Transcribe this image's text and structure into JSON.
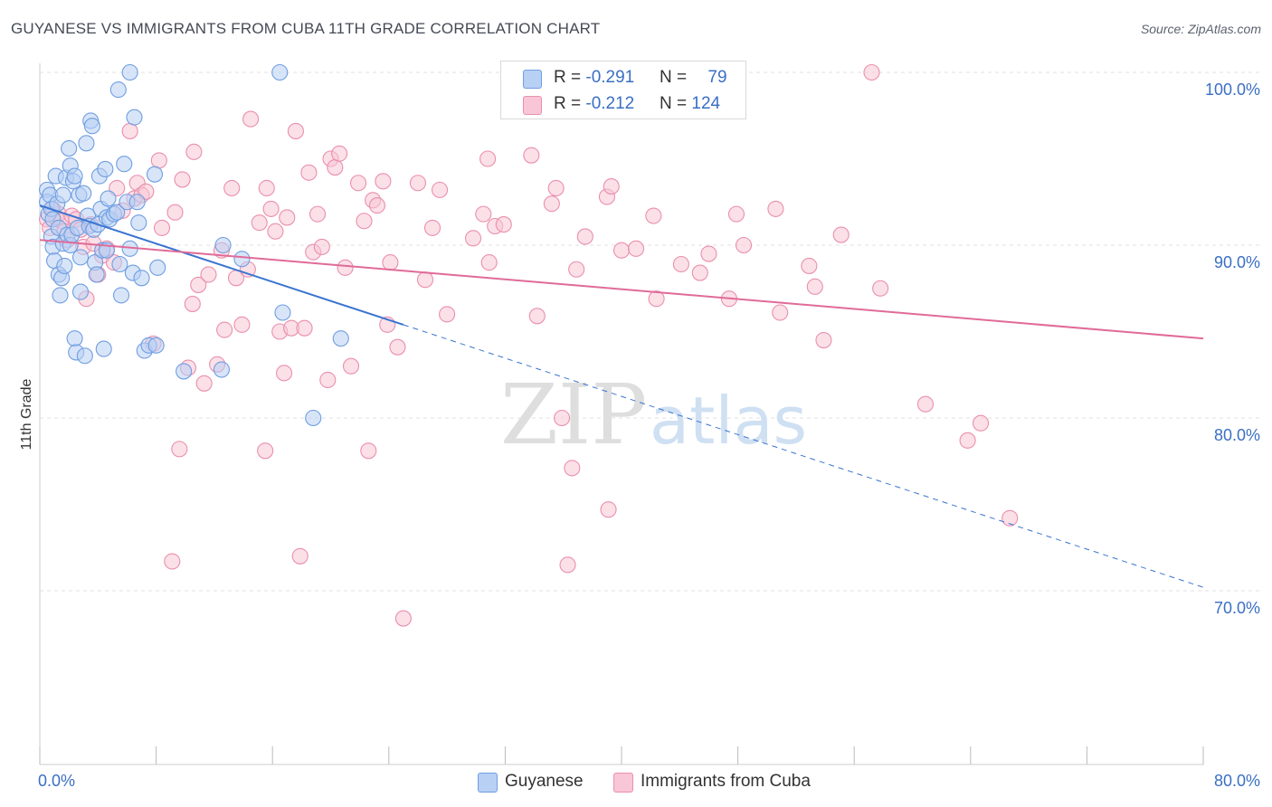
{
  "header": {
    "title": "GUYANESE VS IMMIGRANTS FROM CUBA 11TH GRADE CORRELATION CHART",
    "source": "Source: ZipAtlas.com"
  },
  "legend": {
    "r_label": "R = ",
    "n_label": "N = ",
    "rows": [
      {
        "r": "-0.291",
        "n": "79"
      },
      {
        "r": "-0.212",
        "n": "124"
      }
    ]
  },
  "bottom_legend": [
    "Guyanese",
    "Immigrants from Cuba"
  ],
  "watermark": {
    "zip": "ZIP",
    "atlas": "atlas"
  },
  "colors": {
    "blue_fill": "#b8d0f4",
    "blue_stroke": "#6f9ee0",
    "blue_line": "#3a74d0",
    "pink_fill": "#f8c6d6",
    "pink_stroke": "#ea8fad",
    "pink_line": "#e06b98",
    "tick_text": "#3a6fc4",
    "grid": "#e2e2e2"
  },
  "chart_data": {
    "type": "scatter",
    "title": "GUYANESE VS IMMIGRANTS FROM CUBA 11TH GRADE CORRELATION CHART",
    "xlabel": "",
    "ylabel": "11th Grade",
    "xlim": [
      0,
      80
    ],
    "ylim": [
      60,
      100.5
    ],
    "x_ticks": [
      "0.0%",
      "80.0%"
    ],
    "y_ticks": [
      {
        "value": 100,
        "label": "100.0%"
      },
      {
        "value": 90,
        "label": "90.0%"
      },
      {
        "value": 80,
        "label": "80.0%"
      },
      {
        "value": 70,
        "label": "70.0%"
      }
    ],
    "grid": true,
    "legend_position": "top-center",
    "series": [
      {
        "name": "Guyanese",
        "r": -0.291,
        "n": 79,
        "trend": {
          "x0": 0,
          "y0": 92.3,
          "x1": 80,
          "y1": 70.2,
          "solid_until_x": 25
        },
        "points": [
          [
            0.5,
            93.2
          ],
          [
            0.5,
            92.5
          ],
          [
            0.6,
            91.8
          ],
          [
            0.7,
            92.9
          ],
          [
            0.8,
            92.1
          ],
          [
            0.9,
            91.5
          ],
          [
            0.8,
            90.5
          ],
          [
            0.9,
            89.9
          ],
          [
            1.0,
            89.1
          ],
          [
            1.1,
            94.0
          ],
          [
            1.2,
            92.4
          ],
          [
            1.3,
            91.0
          ],
          [
            1.3,
            88.3
          ],
          [
            1.4,
            87.1
          ],
          [
            1.5,
            88.1
          ],
          [
            1.6,
            90.1
          ],
          [
            1.6,
            92.9
          ],
          [
            1.7,
            88.8
          ],
          [
            1.8,
            93.9
          ],
          [
            1.9,
            90.6
          ],
          [
            2.0,
            95.6
          ],
          [
            2.1,
            94.6
          ],
          [
            2.1,
            90.0
          ],
          [
            2.2,
            90.6
          ],
          [
            2.3,
            93.7
          ],
          [
            2.4,
            94.0
          ],
          [
            2.4,
            84.6
          ],
          [
            2.5,
            83.8
          ],
          [
            2.6,
            91.0
          ],
          [
            2.7,
            92.9
          ],
          [
            2.8,
            89.3
          ],
          [
            2.8,
            87.3
          ],
          [
            3.0,
            93.0
          ],
          [
            3.1,
            83.6
          ],
          [
            3.2,
            95.9
          ],
          [
            3.3,
            91.7
          ],
          [
            3.4,
            91.1
          ],
          [
            3.5,
            97.2
          ],
          [
            3.6,
            96.9
          ],
          [
            3.7,
            90.9
          ],
          [
            3.8,
            89.0
          ],
          [
            3.9,
            88.3
          ],
          [
            4.0,
            91.2
          ],
          [
            4.1,
            94.0
          ],
          [
            4.2,
            92.1
          ],
          [
            4.3,
            89.7
          ],
          [
            4.4,
            84.0
          ],
          [
            4.5,
            94.4
          ],
          [
            4.6,
            91.6
          ],
          [
            4.6,
            89.7
          ],
          [
            4.7,
            92.7
          ],
          [
            4.8,
            91.5
          ],
          [
            5.1,
            91.8
          ],
          [
            5.3,
            91.9
          ],
          [
            5.4,
            99.0
          ],
          [
            5.5,
            88.9
          ],
          [
            5.6,
            87.1
          ],
          [
            5.8,
            94.7
          ],
          [
            6.0,
            92.5
          ],
          [
            6.2,
            100.0
          ],
          [
            6.2,
            89.8
          ],
          [
            6.4,
            88.4
          ],
          [
            6.5,
            97.4
          ],
          [
            6.7,
            92.5
          ],
          [
            6.8,
            91.3
          ],
          [
            7.0,
            88.1
          ],
          [
            7.2,
            83.9
          ],
          [
            7.5,
            84.2
          ],
          [
            7.9,
            94.1
          ],
          [
            8.0,
            84.2
          ],
          [
            8.1,
            88.7
          ],
          [
            9.9,
            82.7
          ],
          [
            12.5,
            82.8
          ],
          [
            12.6,
            90.0
          ],
          [
            13.9,
            89.2
          ],
          [
            16.5,
            100.0
          ],
          [
            16.7,
            86.1
          ],
          [
            18.8,
            80.0
          ],
          [
            20.7,
            84.6
          ]
        ]
      },
      {
        "name": "Immigrants from Cuba",
        "r": -0.212,
        "n": 124,
        "trend": {
          "x0": 0,
          "y0": 90.3,
          "x1": 80,
          "y1": 84.6
        },
        "points": [
          [
            0.5,
            91.5
          ],
          [
            0.7,
            91.0
          ],
          [
            0.9,
            92.1
          ],
          [
            1.1,
            91.6
          ],
          [
            1.3,
            91.8
          ],
          [
            1.5,
            91.4
          ],
          [
            1.7,
            90.8
          ],
          [
            1.9,
            90.3
          ],
          [
            2.2,
            91.7
          ],
          [
            2.5,
            91.5
          ],
          [
            2.8,
            90.9
          ],
          [
            3.0,
            89.9
          ],
          [
            3.2,
            86.9
          ],
          [
            3.5,
            91.2
          ],
          [
            3.7,
            90.1
          ],
          [
            4.0,
            88.3
          ],
          [
            4.3,
            89.4
          ],
          [
            4.6,
            89.8
          ],
          [
            5.1,
            89.0
          ],
          [
            5.3,
            93.3
          ],
          [
            5.7,
            92.0
          ],
          [
            6.2,
            96.6
          ],
          [
            6.5,
            92.7
          ],
          [
            6.7,
            93.6
          ],
          [
            7.0,
            92.9
          ],
          [
            7.3,
            93.1
          ],
          [
            7.8,
            84.3
          ],
          [
            8.2,
            94.9
          ],
          [
            8.4,
            91.0
          ],
          [
            9.1,
            71.7
          ],
          [
            9.3,
            91.9
          ],
          [
            9.6,
            78.2
          ],
          [
            9.8,
            93.8
          ],
          [
            10.2,
            82.9
          ],
          [
            10.5,
            86.6
          ],
          [
            10.6,
            95.4
          ],
          [
            10.9,
            87.7
          ],
          [
            11.3,
            82.0
          ],
          [
            11.6,
            88.3
          ],
          [
            12.2,
            83.1
          ],
          [
            12.5,
            89.7
          ],
          [
            12.7,
            85.1
          ],
          [
            13.2,
            93.3
          ],
          [
            13.5,
            88.1
          ],
          [
            13.9,
            85.4
          ],
          [
            14.3,
            88.6
          ],
          [
            14.5,
            97.3
          ],
          [
            15.1,
            91.3
          ],
          [
            15.5,
            78.1
          ],
          [
            15.6,
            93.3
          ],
          [
            15.9,
            92.1
          ],
          [
            16.2,
            90.8
          ],
          [
            16.5,
            85.0
          ],
          [
            16.8,
            82.6
          ],
          [
            17.0,
            91.6
          ],
          [
            17.3,
            85.2
          ],
          [
            17.6,
            96.6
          ],
          [
            17.9,
            72.0
          ],
          [
            18.2,
            85.2
          ],
          [
            18.5,
            94.2
          ],
          [
            18.8,
            89.6
          ],
          [
            19.1,
            91.8
          ],
          [
            19.4,
            89.9
          ],
          [
            19.8,
            82.2
          ],
          [
            20.0,
            95.0
          ],
          [
            20.3,
            94.5
          ],
          [
            20.6,
            95.3
          ],
          [
            21.0,
            88.7
          ],
          [
            21.4,
            83.0
          ],
          [
            21.9,
            93.6
          ],
          [
            22.3,
            91.4
          ],
          [
            22.6,
            78.1
          ],
          [
            22.9,
            92.6
          ],
          [
            23.2,
            92.3
          ],
          [
            23.6,
            93.7
          ],
          [
            23.9,
            85.4
          ],
          [
            24.1,
            89.0
          ],
          [
            24.6,
            84.1
          ],
          [
            25.0,
            68.4
          ],
          [
            26.0,
            93.6
          ],
          [
            26.5,
            88.0
          ],
          [
            27.0,
            91.0
          ],
          [
            27.5,
            93.2
          ],
          [
            28.0,
            86.0
          ],
          [
            29.8,
            90.4
          ],
          [
            30.5,
            91.8
          ],
          [
            30.8,
            95.0
          ],
          [
            30.9,
            89.0
          ],
          [
            31.3,
            91.1
          ],
          [
            31.9,
            91.2
          ],
          [
            33.8,
            95.2
          ],
          [
            34.2,
            85.9
          ],
          [
            35.2,
            92.4
          ],
          [
            35.5,
            93.3
          ],
          [
            35.9,
            80.0
          ],
          [
            36.3,
            71.5
          ],
          [
            36.6,
            77.1
          ],
          [
            36.9,
            88.6
          ],
          [
            37.5,
            90.5
          ],
          [
            39.0,
            92.8
          ],
          [
            39.3,
            93.4
          ],
          [
            39.1,
            74.7
          ],
          [
            40.0,
            89.7
          ],
          [
            41.0,
            89.8
          ],
          [
            42.2,
            91.7
          ],
          [
            42.4,
            86.9
          ],
          [
            44.1,
            88.9
          ],
          [
            45.4,
            88.4
          ],
          [
            46.0,
            89.5
          ],
          [
            47.4,
            86.9
          ],
          [
            47.9,
            91.8
          ],
          [
            48.4,
            90.0
          ],
          [
            50.6,
            92.1
          ],
          [
            50.9,
            86.1
          ],
          [
            52.9,
            88.8
          ],
          [
            53.3,
            87.6
          ],
          [
            53.9,
            84.5
          ],
          [
            55.1,
            90.6
          ],
          [
            57.2,
            100.0
          ],
          [
            57.8,
            87.5
          ],
          [
            60.9,
            80.8
          ],
          [
            63.8,
            78.7
          ],
          [
            64.7,
            79.7
          ],
          [
            66.7,
            74.2
          ]
        ]
      }
    ]
  }
}
